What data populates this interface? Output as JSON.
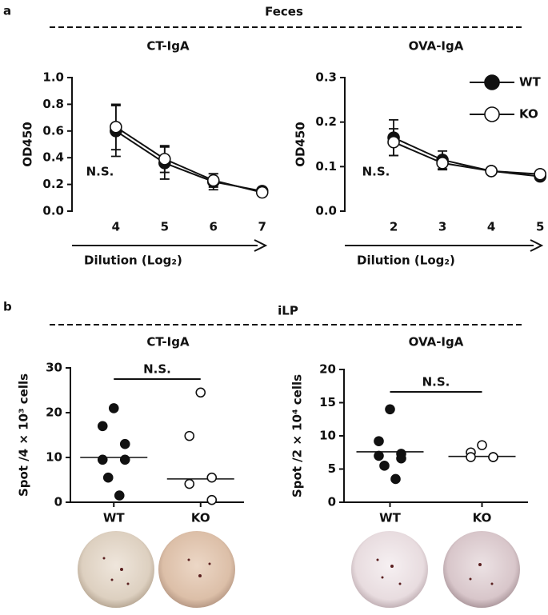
{
  "sections": [
    {
      "label": "a",
      "title": "Feces"
    },
    {
      "label": "b",
      "title": "iLP"
    }
  ],
  "chart_data": [
    {
      "type": "line",
      "title": "CT-IgA",
      "y_label": "OD450",
      "x_label": "Dilution (Log₂)",
      "annotation": "N.S.",
      "x": [
        4,
        5,
        6,
        7
      ],
      "xlim": [
        3.1,
        7.07
      ],
      "xticks": [
        4,
        5,
        6,
        7
      ],
      "ylim": [
        0,
        1.0
      ],
      "yticks": [
        {
          "value": 0,
          "label": "0.0"
        },
        0.2,
        0.4,
        0.6,
        0.8,
        {
          "value": 1.0,
          "label": "1.0"
        }
      ],
      "series": [
        {
          "name": "WT",
          "color": "#111111",
          "fill": "filled",
          "values": [
            0.6,
            0.36,
            0.22,
            0.15
          ],
          "errors": [
            0.19,
            0.12,
            0.06,
            0.02
          ]
        },
        {
          "name": "KO",
          "color": "#111111",
          "fill": "open",
          "values": [
            0.63,
            0.39,
            0.23,
            0.14
          ],
          "errors": [
            0.17,
            0.1,
            0.05,
            0.02
          ]
        }
      ]
    },
    {
      "type": "line",
      "title": "OVA-IgA",
      "y_label": "OD450",
      "x_label": "Dilution (Log₂)",
      "annotation": "N.S.",
      "legend": "upper right",
      "x": [
        2,
        3,
        4,
        5
      ],
      "xlim": [
        1,
        5.03
      ],
      "xticks": [
        2,
        3,
        4,
        5
      ],
      "ylim": [
        0,
        0.3
      ],
      "yticks": [
        {
          "value": 0,
          "label": "0.0"
        },
        0.1,
        0.2,
        0.3
      ],
      "series": [
        {
          "name": "WT",
          "color": "#111111",
          "fill": "filled",
          "values": [
            0.165,
            0.115,
            0.09,
            0.078
          ],
          "errors": [
            0.04,
            0.02,
            0.005,
            0.005
          ]
        },
        {
          "name": "KO",
          "color": "#111111",
          "fill": "open",
          "values": [
            0.155,
            0.108,
            0.09,
            0.083
          ],
          "errors": [
            0.03,
            0.015,
            0.005,
            0.005
          ]
        }
      ]
    },
    {
      "type": "strip",
      "title": "CT-IgA",
      "y_label": "Spot /4 × 10³ cells",
      "annotation": "N.S.",
      "categories": [
        "WT",
        "KO"
      ],
      "ylim": [
        0,
        30
      ],
      "yticks": [
        0,
        10,
        20,
        30
      ],
      "series": [
        {
          "name": "WT",
          "color": "#111111",
          "fill": "filled",
          "values": [
            21,
            17,
            13,
            9.5,
            9.5,
            5.5,
            1.5
          ],
          "center": 10
        },
        {
          "name": "KO",
          "color": "#111111",
          "fill": "open",
          "values": [
            24.5,
            14.8,
            5.5,
            4.1,
            0.5
          ],
          "center": 5.2
        }
      ]
    },
    {
      "type": "strip",
      "title": "OVA-IgA",
      "y_label": "Spot /2 × 10⁴ cells",
      "annotation": "N.S.",
      "categories": [
        "WT",
        "KO"
      ],
      "ylim": [
        0,
        20
      ],
      "yticks": [
        0,
        5,
        10,
        15,
        20
      ],
      "series": [
        {
          "name": "WT",
          "color": "#111111",
          "fill": "filled",
          "values": [
            14,
            9.2,
            7.3,
            7,
            6.6,
            5.5,
            3.5
          ],
          "center": 7.6
        },
        {
          "name": "KO",
          "color": "#111111",
          "fill": "open",
          "values": [
            8.6,
            7.5,
            6.8,
            6.8,
            6.8
          ],
          "center": 6.9
        }
      ]
    }
  ]
}
